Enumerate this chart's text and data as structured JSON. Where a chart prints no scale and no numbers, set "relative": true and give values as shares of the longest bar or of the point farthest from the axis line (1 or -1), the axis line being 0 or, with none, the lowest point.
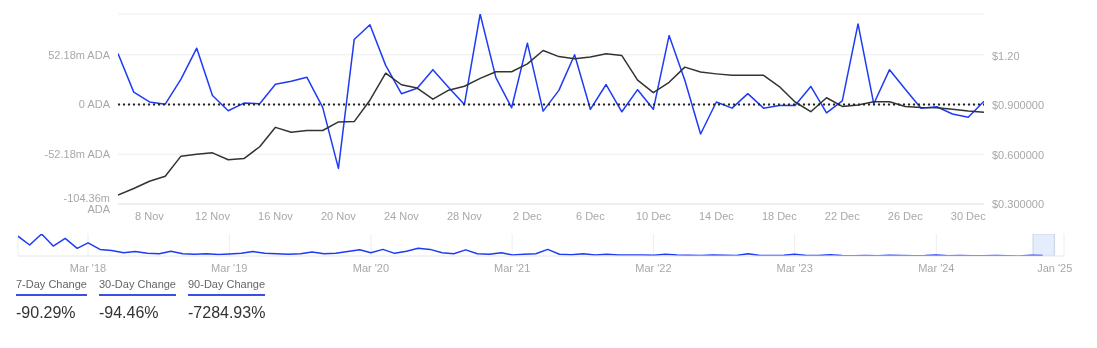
{
  "chart_data": [
    {
      "type": "line",
      "x": [
        "2024-11-06",
        "2024-11-07",
        "2024-11-08",
        "2024-11-09",
        "2024-11-10",
        "2024-11-11",
        "2024-11-12",
        "2024-11-13",
        "2024-11-14",
        "2024-11-15",
        "2024-11-16",
        "2024-11-17",
        "2024-11-18",
        "2024-11-19",
        "2024-11-20",
        "2024-11-21",
        "2024-11-22",
        "2024-11-23",
        "2024-11-24",
        "2024-11-25",
        "2024-11-26",
        "2024-11-27",
        "2024-11-28",
        "2024-11-29",
        "2024-11-30",
        "2024-12-01",
        "2024-12-02",
        "2024-12-03",
        "2024-12-04",
        "2024-12-05",
        "2024-12-06",
        "2024-12-07",
        "2024-12-08",
        "2024-12-09",
        "2024-12-10",
        "2024-12-11",
        "2024-12-12",
        "2024-12-13",
        "2024-12-14",
        "2024-12-15",
        "2024-12-16",
        "2024-12-17",
        "2024-12-18",
        "2024-12-19",
        "2024-12-20",
        "2024-12-21",
        "2024-12-22",
        "2024-12-23",
        "2024-12-24",
        "2024-12-25",
        "2024-12-26",
        "2024-12-27",
        "2024-12-28",
        "2024-12-29",
        "2024-12-30",
        "2024-12-31"
      ],
      "series": [
        {
          "color": "#1f3cf5",
          "values": [
            53.5,
            13.0,
            2.7,
            0.4,
            26.7,
            59.1,
            9.5,
            -6.5,
            1.5,
            0.8,
            21.3,
            24.4,
            28.6,
            -3.0,
            -67.0,
            68.2,
            83.8,
            41.1,
            11.4,
            17.1,
            36.6,
            17.9,
            0,
            95,
            28.2,
            -3.4,
            64.4,
            -6.9,
            14.9,
            52.2,
            -5.0,
            21.0,
            -7.6,
            15.6,
            -5.0,
            72.4,
            25.5,
            -30.9,
            2.7,
            -3.8,
            11.4,
            -3.8,
            -1.1,
            -1.1,
            19.0,
            -8.8,
            3.8,
            84.6,
            0.8,
            36.6,
            16.0,
            -3.8,
            -2.3,
            -9.9,
            -13.3,
            3.4
          ]
        },
        {
          "color": "#333333",
          "axis": "y2",
          "values": [
            0.355,
            0.394,
            0.438,
            0.469,
            0.591,
            0.602,
            0.611,
            0.569,
            0.576,
            0.648,
            0.766,
            0.736,
            0.747,
            0.747,
            0.799,
            0.801,
            0.931,
            1.095,
            1.025,
            1.005,
            0.937,
            0.992,
            1.016,
            1.064,
            1.104,
            1.104,
            1.152,
            1.233,
            1.196,
            1.183,
            1.193,
            1.213,
            1.202,
            1.053,
            0.977,
            1.04,
            1.132,
            1.102,
            1.091,
            1.082,
            1.082,
            1.082,
            1.014,
            0.92,
            0.861,
            0.946,
            0.893,
            0.902,
            0.922,
            0.922,
            0.893,
            0.887,
            0.885,
            0.876,
            0.865,
            0.858
          ]
        }
      ],
      "xlim": [
        "2024-11-06",
        "2024-12-31"
      ],
      "xticks": [
        {
          "value": "2024-11-08",
          "label": "8 Nov"
        },
        {
          "value": "2024-11-12",
          "label": "12 Nov"
        },
        {
          "value": "2024-11-16",
          "label": "16 Nov"
        },
        {
          "value": "2024-11-20",
          "label": "20 Nov"
        },
        {
          "value": "2024-11-24",
          "label": "24 Nov"
        },
        {
          "value": "2024-11-28",
          "label": "28 Nov"
        },
        {
          "value": "2024-12-02",
          "label": "2 Dec"
        },
        {
          "value": "2024-12-06",
          "label": "6 Dec"
        },
        {
          "value": "2024-12-10",
          "label": "10 Dec"
        },
        {
          "value": "2024-12-14",
          "label": "14 Dec"
        },
        {
          "value": "2024-12-18",
          "label": "18 Dec"
        },
        {
          "value": "2024-12-22",
          "label": "22 Dec"
        },
        {
          "value": "2024-12-26",
          "label": "26 Dec"
        },
        {
          "value": "2024-12-30",
          "label": "30 Dec"
        }
      ],
      "ylim": [
        -104.36,
        95
      ],
      "yticks": [
        {
          "value": -104.36,
          "label": "-104.36m ADA"
        },
        {
          "value": -52.18,
          "label": "-52.18m ADA"
        },
        {
          "value": 0,
          "label": "0 ADA"
        },
        {
          "value": 52.18,
          "label": "52.18m ADA"
        }
      ],
      "y2lim": [
        0.3,
        1.455
      ],
      "y2ticks": [
        {
          "value": 0.3,
          "label": "$0.300000"
        },
        {
          "value": 0.6,
          "label": "$0.600000"
        },
        {
          "value": 0.9,
          "label": "$0.900000"
        },
        {
          "value": 1.2,
          "label": "$1.20"
        }
      ],
      "ref_lines": [
        {
          "axis": "y",
          "value": 0,
          "color": "#222222",
          "line_style": "dotted"
        }
      ],
      "grid": "y",
      "marker": "none",
      "line_style": "solid",
      "annotations": [
        "7-Day Change",
        "-90.29%",
        "30-Day Change",
        "-94.46%",
        "90-Day Change",
        "-7284.93%"
      ]
    },
    {
      "type": "line",
      "relative": true,
      "x": [
        "2017-09",
        "2017-10",
        "2017-11",
        "2017-12",
        "2018-01",
        "2018-02",
        "2018-03",
        "2018-04",
        "2018-05",
        "2018-06",
        "2018-07",
        "2018-08",
        "2018-09",
        "2018-10",
        "2018-11",
        "2018-12",
        "2019-01",
        "2019-02",
        "2019-03",
        "2019-04",
        "2019-05",
        "2019-06",
        "2019-07",
        "2019-08",
        "2019-09",
        "2019-10",
        "2019-11",
        "2019-12",
        "2020-01",
        "2020-02",
        "2020-03",
        "2020-04",
        "2020-05",
        "2020-06",
        "2020-07",
        "2020-08",
        "2020-09",
        "2020-10",
        "2020-11",
        "2020-12",
        "2021-01",
        "2021-02",
        "2021-03",
        "2021-04",
        "2021-05",
        "2021-06",
        "2021-07",
        "2021-08",
        "2021-09",
        "2021-10",
        "2021-11",
        "2021-12",
        "2022-01",
        "2022-02",
        "2022-03",
        "2022-04",
        "2022-05",
        "2022-06",
        "2022-07",
        "2022-08",
        "2022-09",
        "2022-10",
        "2022-11",
        "2022-12",
        "2023-01",
        "2023-02",
        "2023-03",
        "2023-04",
        "2023-05",
        "2023-06",
        "2023-07",
        "2023-08",
        "2023-09",
        "2023-10",
        "2023-11",
        "2023-12",
        "2024-01",
        "2024-02",
        "2024-03",
        "2024-04",
        "2024-05",
        "2024-06",
        "2024-07",
        "2024-08",
        "2024-09",
        "2024-10",
        "2024-11",
        "2024-12"
      ],
      "series": [
        {
          "color": "#1f3cf5",
          "values": [
            0.9,
            0.5,
            1.0,
            0.45,
            0.8,
            0.35,
            0.6,
            0.3,
            0.25,
            0.15,
            0.2,
            0.12,
            0.1,
            0.22,
            0.1,
            0.08,
            0.1,
            0.07,
            0.09,
            0.12,
            0.2,
            0.12,
            0.1,
            0.08,
            0.1,
            0.18,
            0.1,
            0.12,
            0.2,
            0.28,
            0.15,
            0.3,
            0.12,
            0.22,
            0.35,
            0.3,
            0.15,
            0.1,
            0.28,
            0.1,
            0.08,
            0.15,
            0.05,
            0.08,
            0.1,
            0.3,
            0.08,
            0.06,
            0.1,
            0.05,
            0.08,
            0.04,
            0.05,
            0.04,
            0.03,
            0.08,
            0.04,
            0.03,
            0.02,
            0.05,
            0.03,
            0.02,
            0.1,
            0.02,
            0.02,
            0.03,
            0.08,
            0.02,
            0.02,
            0.06,
            0.02,
            0.01,
            0.02,
            0.01,
            0.03,
            0.02,
            0.01,
            0.02,
            0.05,
            0.01,
            0.02,
            0.01,
            0.01,
            0.02,
            0.01,
            0,
            0.03,
            0.02
          ]
        }
      ],
      "xlim": [
        "2017-09",
        "2025-01-25"
      ],
      "xticks": [
        {
          "value": "2018-03",
          "label": "Mar '18"
        },
        {
          "value": "2019-03",
          "label": "Mar '19"
        },
        {
          "value": "2020-03",
          "label": "Mar '20"
        },
        {
          "value": "2021-03",
          "label": "Mar '21"
        },
        {
          "value": "2022-03",
          "label": "Mar '22"
        },
        {
          "value": "2023-03",
          "label": "Mar '23"
        },
        {
          "value": "2024-03",
          "label": "Mar '24"
        },
        {
          "value": "2025-01",
          "label": "Jan '25"
        }
      ],
      "bands": [
        {
          "axis": "x",
          "from": "2024-11-06",
          "to": "2024-12-31",
          "color": "#e3edfc"
        }
      ],
      "grid": "x",
      "marker": "none"
    }
  ]
}
